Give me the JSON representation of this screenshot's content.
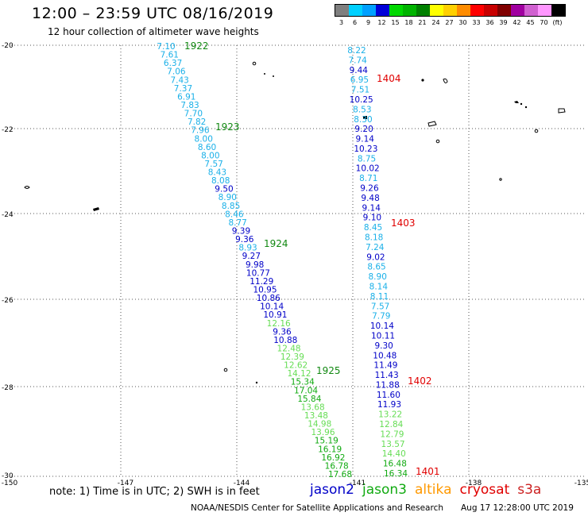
{
  "header": {
    "title": "12:00 – 23:59 UTC 08/16/2019",
    "subtitle": "12 hour collection of altimeter wave heights"
  },
  "legend": {
    "bins": [
      {
        "label": "3",
        "color": "#7f7f7f"
      },
      {
        "label": "6",
        "color": "#00d0ff"
      },
      {
        "label": "9",
        "color": "#00a0ff"
      },
      {
        "label": "12",
        "color": "#0000d8"
      },
      {
        "label": "15",
        "color": "#00d800"
      },
      {
        "label": "18",
        "color": "#00b400"
      },
      {
        "label": "21",
        "color": "#008000"
      },
      {
        "label": "24",
        "color": "#ffff00"
      },
      {
        "label": "27",
        "color": "#ffd000"
      },
      {
        "label": "30",
        "color": "#ff8c00"
      },
      {
        "label": "33",
        "color": "#ff0000"
      },
      {
        "label": "36",
        "color": "#c80000"
      },
      {
        "label": "39",
        "color": "#800000"
      },
      {
        "label": "42",
        "color": "#a000a0"
      },
      {
        "label": "45",
        "color": "#d060d0"
      },
      {
        "label": "70",
        "color": "#ff96ff"
      },
      {
        "label": "(ft)",
        "color": "#000000"
      }
    ]
  },
  "axes": {
    "lat_labels": [
      "-20",
      "-22",
      "-24",
      "-26",
      "-28",
      "-30"
    ],
    "lon_labels": [
      "-150",
      "-147",
      "-144",
      "-141",
      "-138",
      "-135"
    ]
  },
  "colors": {
    "light_blue": "#1ab0e8",
    "blue": "#0000c8",
    "light_green": "#66dd55",
    "green": "#11aa11",
    "dark_green": "#118811",
    "time_green": "#118811",
    "time_red": "#e00000"
  },
  "tracks": {
    "left": [
      {
        "v": "7.10",
        "c": "light_blue"
      },
      {
        "v": "7.61",
        "c": "light_blue"
      },
      {
        "v": "6.37",
        "c": "light_blue"
      },
      {
        "v": "7.06",
        "c": "light_blue"
      },
      {
        "v": "7.43",
        "c": "light_blue"
      },
      {
        "v": "7.37",
        "c": "light_blue"
      },
      {
        "v": "6.91",
        "c": "light_blue"
      },
      {
        "v": "7.83",
        "c": "light_blue"
      },
      {
        "v": "7.70",
        "c": "light_blue"
      },
      {
        "v": "7.82",
        "c": "light_blue"
      },
      {
        "v": "7.96",
        "c": "light_blue"
      },
      {
        "v": "8.00",
        "c": "light_blue"
      },
      {
        "v": "8.60",
        "c": "light_blue"
      },
      {
        "v": "8.00",
        "c": "light_blue"
      },
      {
        "v": "7.57",
        "c": "light_blue"
      },
      {
        "v": "8.43",
        "c": "light_blue"
      },
      {
        "v": "8.08",
        "c": "light_blue"
      },
      {
        "v": "9.50",
        "c": "blue"
      },
      {
        "v": "8.90",
        "c": "light_blue"
      },
      {
        "v": "8.85",
        "c": "light_blue"
      },
      {
        "v": "8.46",
        "c": "light_blue"
      },
      {
        "v": "8.77",
        "c": "light_blue"
      },
      {
        "v": "9.39",
        "c": "blue"
      },
      {
        "v": "9.36",
        "c": "blue"
      },
      {
        "v": "8.93",
        "c": "light_blue"
      },
      {
        "v": "9.27",
        "c": "blue"
      },
      {
        "v": "9.98",
        "c": "blue"
      },
      {
        "v": "10.77",
        "c": "blue"
      },
      {
        "v": "11.29",
        "c": "blue"
      },
      {
        "v": "10.95",
        "c": "blue"
      },
      {
        "v": "10.86",
        "c": "blue"
      },
      {
        "v": "10.14",
        "c": "blue"
      },
      {
        "v": "10.91",
        "c": "blue"
      },
      {
        "v": "12.16",
        "c": "light_green"
      },
      {
        "v": "9.36",
        "c": "blue"
      },
      {
        "v": "10.88",
        "c": "blue"
      },
      {
        "v": "12.48",
        "c": "light_green"
      },
      {
        "v": "12.39",
        "c": "light_green"
      },
      {
        "v": "12.62",
        "c": "light_green"
      },
      {
        "v": "14.12",
        "c": "light_green"
      },
      {
        "v": "15.34",
        "c": "green"
      },
      {
        "v": "17.04",
        "c": "green"
      },
      {
        "v": "15.84",
        "c": "green"
      },
      {
        "v": "13.68",
        "c": "light_green"
      },
      {
        "v": "13.48",
        "c": "light_green"
      },
      {
        "v": "14.98",
        "c": "light_green"
      },
      {
        "v": "13.96",
        "c": "light_green"
      },
      {
        "v": "15.19",
        "c": "green"
      },
      {
        "v": "16.19",
        "c": "green"
      },
      {
        "v": "16.92",
        "c": "green"
      },
      {
        "v": "16.78",
        "c": "green"
      },
      {
        "v": "17.68",
        "c": "green"
      }
    ],
    "right": [
      {
        "v": "8.22",
        "c": "light_blue"
      },
      {
        "v": "7.74",
        "c": "light_blue"
      },
      {
        "v": "9.44",
        "c": "blue"
      },
      {
        "v": "6.95",
        "c": "light_blue"
      },
      {
        "v": "7.51",
        "c": "light_blue"
      },
      {
        "v": "10.25",
        "c": "blue"
      },
      {
        "v": "8.53",
        "c": "light_blue"
      },
      {
        "v": "8.30",
        "c": "light_blue"
      },
      {
        "v": "9.20",
        "c": "blue"
      },
      {
        "v": "9.14",
        "c": "blue"
      },
      {
        "v": "10.23",
        "c": "blue"
      },
      {
        "v": "8.75",
        "c": "light_blue"
      },
      {
        "v": "10.02",
        "c": "blue"
      },
      {
        "v": "8.71",
        "c": "light_blue"
      },
      {
        "v": "9.26",
        "c": "blue"
      },
      {
        "v": "9.48",
        "c": "blue"
      },
      {
        "v": "9.14",
        "c": "blue"
      },
      {
        "v": "9.10",
        "c": "blue"
      },
      {
        "v": "8.45",
        "c": "light_blue"
      },
      {
        "v": "8.18",
        "c": "light_blue"
      },
      {
        "v": "7.24",
        "c": "light_blue"
      },
      {
        "v": "9.02",
        "c": "blue"
      },
      {
        "v": "8.65",
        "c": "light_blue"
      },
      {
        "v": "8.90",
        "c": "light_blue"
      },
      {
        "v": "8.14",
        "c": "light_blue"
      },
      {
        "v": "8.11",
        "c": "light_blue"
      },
      {
        "v": "7.57",
        "c": "light_blue"
      },
      {
        "v": "7.79",
        "c": "light_blue"
      },
      {
        "v": "10.14",
        "c": "blue"
      },
      {
        "v": "10.11",
        "c": "blue"
      },
      {
        "v": "9.30",
        "c": "blue"
      },
      {
        "v": "10.48",
        "c": "blue"
      },
      {
        "v": "11.49",
        "c": "blue"
      },
      {
        "v": "11.43",
        "c": "blue"
      },
      {
        "v": "11.88",
        "c": "blue"
      },
      {
        "v": "11.60",
        "c": "blue"
      },
      {
        "v": "11.93",
        "c": "blue"
      },
      {
        "v": "13.22",
        "c": "light_green"
      },
      {
        "v": "12.84",
        "c": "light_green"
      },
      {
        "v": "12.79",
        "c": "light_green"
      },
      {
        "v": "13.57",
        "c": "light_green"
      },
      {
        "v": "14.40",
        "c": "light_green"
      },
      {
        "v": "16.48",
        "c": "green"
      },
      {
        "v": "16.34",
        "c": "green"
      }
    ]
  },
  "time_labels": {
    "left": [
      {
        "text": "1922",
        "c": "time_green"
      },
      {
        "text": "1923",
        "c": "time_green"
      },
      {
        "text": "1924",
        "c": "time_green"
      },
      {
        "text": "1925",
        "c": "time_green"
      }
    ],
    "right": [
      {
        "text": "1404",
        "c": "time_red"
      },
      {
        "text": "1403",
        "c": "time_red"
      },
      {
        "text": "1402",
        "c": "time_red"
      },
      {
        "text": "1401",
        "c": "time_red"
      }
    ]
  },
  "footer": {
    "note": "note:  1) Time is in UTC;  2) SWH is in feet",
    "satellites": [
      {
        "name": "jason2",
        "color": "#0000c8"
      },
      {
        "name": "jason3",
        "color": "#11aa11"
      },
      {
        "name": "altika",
        "color": "#ff9900"
      },
      {
        "name": "cryosat",
        "color": "#e00000"
      },
      {
        "name": "s3a",
        "color": "#cc2222"
      }
    ],
    "credit": "NOAA/NESDIS Center for Satellite Applications and Research",
    "timestamp": "Aug 17 12:28:00 UTC 2019"
  }
}
